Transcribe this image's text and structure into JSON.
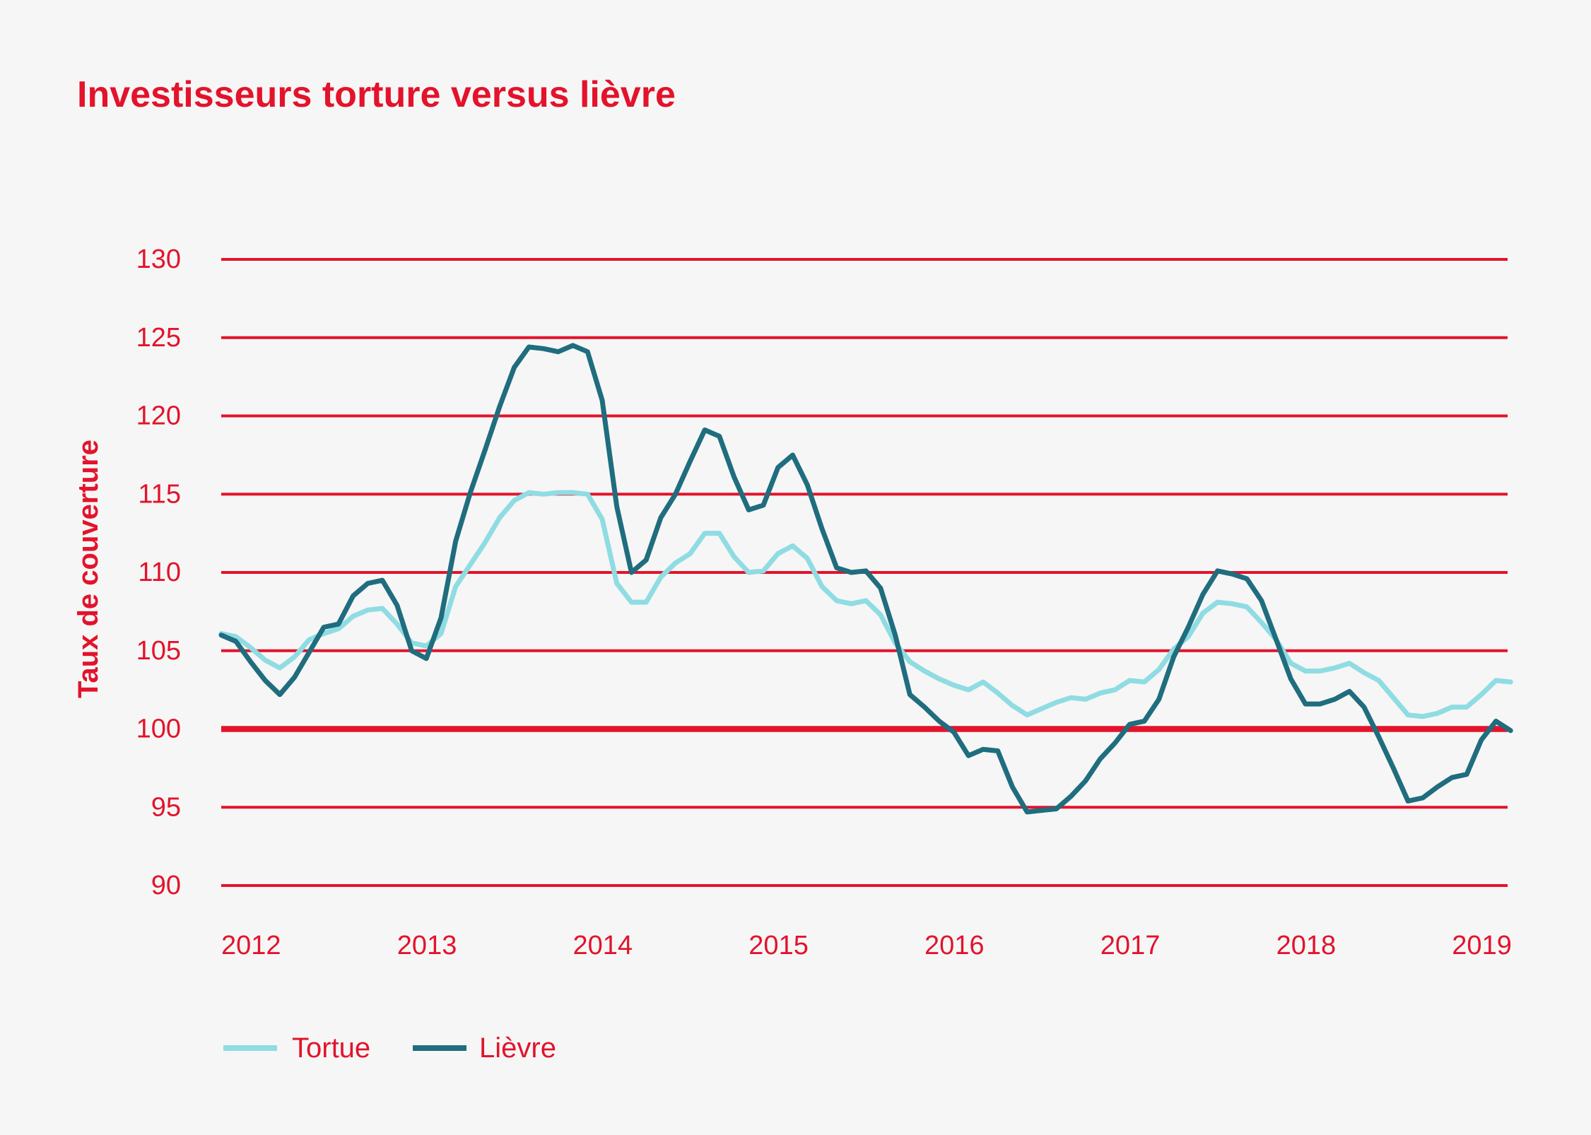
{
  "colors": {
    "background": "#f6f6f6",
    "accent": "#e3132b",
    "tortue": "#8fdce3",
    "lievre": "#1f6d7e"
  },
  "chart_data": {
    "type": "line",
    "title": "Investisseurs torture versus lièvre",
    "ylabel": "Taux de couverture",
    "ylim": [
      90,
      130
    ],
    "y_ticks": [
      90,
      95,
      100,
      105,
      110,
      115,
      120,
      125,
      130
    ],
    "x_ticks": [
      "2012",
      "2013",
      "2014",
      "2015",
      "2016",
      "2017",
      "2018",
      "2019"
    ],
    "reference_line": 100,
    "grid": "horizontal",
    "legend": "bottom-left",
    "x": [
      "2012-01",
      "2012-02",
      "2012-03",
      "2012-04",
      "2012-05",
      "2012-06",
      "2012-07",
      "2012-08",
      "2012-09",
      "2012-10",
      "2012-11",
      "2012-12",
      "2013-01",
      "2013-02",
      "2013-03",
      "2013-04",
      "2013-05",
      "2013-06",
      "2013-07",
      "2013-08",
      "2013-09",
      "2013-10",
      "2013-11",
      "2013-12",
      "2014-01",
      "2014-02",
      "2014-03",
      "2014-04",
      "2014-05",
      "2014-06",
      "2014-07",
      "2014-08",
      "2014-09",
      "2014-10",
      "2014-11",
      "2014-12",
      "2015-01",
      "2015-02",
      "2015-03",
      "2015-04",
      "2015-05",
      "2015-06",
      "2015-07",
      "2015-08",
      "2015-09",
      "2015-10",
      "2015-11",
      "2015-12",
      "2016-01",
      "2016-02",
      "2016-03",
      "2016-04",
      "2016-05",
      "2016-06",
      "2016-07",
      "2016-08",
      "2016-09",
      "2016-10",
      "2016-11",
      "2016-12",
      "2017-01",
      "2017-02",
      "2017-03",
      "2017-04",
      "2017-05",
      "2017-06",
      "2017-07",
      "2017-08",
      "2017-09",
      "2017-10",
      "2017-11",
      "2017-12",
      "2018-01",
      "2018-02",
      "2018-03",
      "2018-04",
      "2018-05",
      "2018-06",
      "2018-07",
      "2018-08",
      "2018-09",
      "2018-10",
      "2018-11",
      "2018-12",
      "2019-01",
      "2019-02",
      "2019-03",
      "2019-04",
      "2019-05"
    ],
    "series": [
      {
        "name": "Tortue",
        "color": "#8fdce3",
        "values": [
          106.1,
          105.9,
          105.2,
          104.4,
          103.9,
          104.6,
          105.7,
          106.1,
          106.4,
          107.2,
          107.6,
          107.7,
          106.7,
          105.5,
          105.3,
          106.1,
          109.1,
          110.5,
          111.9,
          113.5,
          114.6,
          115.1,
          115.0,
          115.1,
          115.1,
          115.0,
          113.4,
          109.3,
          108.1,
          108.1,
          109.7,
          110.6,
          111.2,
          112.5,
          112.5,
          111.0,
          110.0,
          110.1,
          111.2,
          111.7,
          110.9,
          109.1,
          108.2,
          108.0,
          108.2,
          107.3,
          105.5,
          104.3,
          103.7,
          103.2,
          102.8,
          102.5,
          103.0,
          102.3,
          101.5,
          100.9,
          101.3,
          101.7,
          102.0,
          101.9,
          102.3,
          102.5,
          103.1,
          103.0,
          103.8,
          105.1,
          105.9,
          107.4,
          108.1,
          108.0,
          107.8,
          106.8,
          105.7,
          104.2,
          103.7,
          103.7,
          103.9,
          104.2,
          103.6,
          103.1,
          102.0,
          100.9,
          100.8,
          101.0,
          101.4,
          101.4,
          102.2,
          103.1,
          103.0
        ]
      },
      {
        "name": "Lièvre",
        "color": "#1f6d7e",
        "values": [
          106.0,
          105.6,
          104.3,
          103.1,
          102.2,
          103.3,
          104.9,
          106.5,
          106.7,
          108.5,
          109.3,
          109.5,
          107.9,
          105.0,
          104.5,
          107.1,
          112.0,
          115.1,
          117.8,
          120.6,
          123.1,
          124.4,
          124.3,
          124.1,
          124.5,
          124.1,
          121.0,
          114.2,
          110.0,
          110.8,
          113.5,
          115.0,
          117.1,
          119.1,
          118.7,
          116.1,
          114.0,
          114.3,
          116.7,
          117.5,
          115.6,
          112.8,
          110.3,
          110.0,
          110.1,
          109.0,
          106.0,
          102.2,
          101.4,
          100.5,
          99.8,
          98.3,
          98.7,
          98.6,
          96.3,
          94.7,
          94.8,
          94.9,
          95.7,
          96.7,
          98.1,
          99.1,
          100.3,
          100.5,
          101.9,
          104.6,
          106.5,
          108.6,
          110.1,
          109.9,
          109.6,
          108.2,
          105.7,
          103.2,
          101.6,
          101.6,
          101.9,
          102.4,
          101.4,
          99.5,
          97.5,
          95.4,
          95.6,
          96.3,
          96.9,
          97.1,
          99.3,
          100.5,
          99.9
        ]
      }
    ]
  }
}
